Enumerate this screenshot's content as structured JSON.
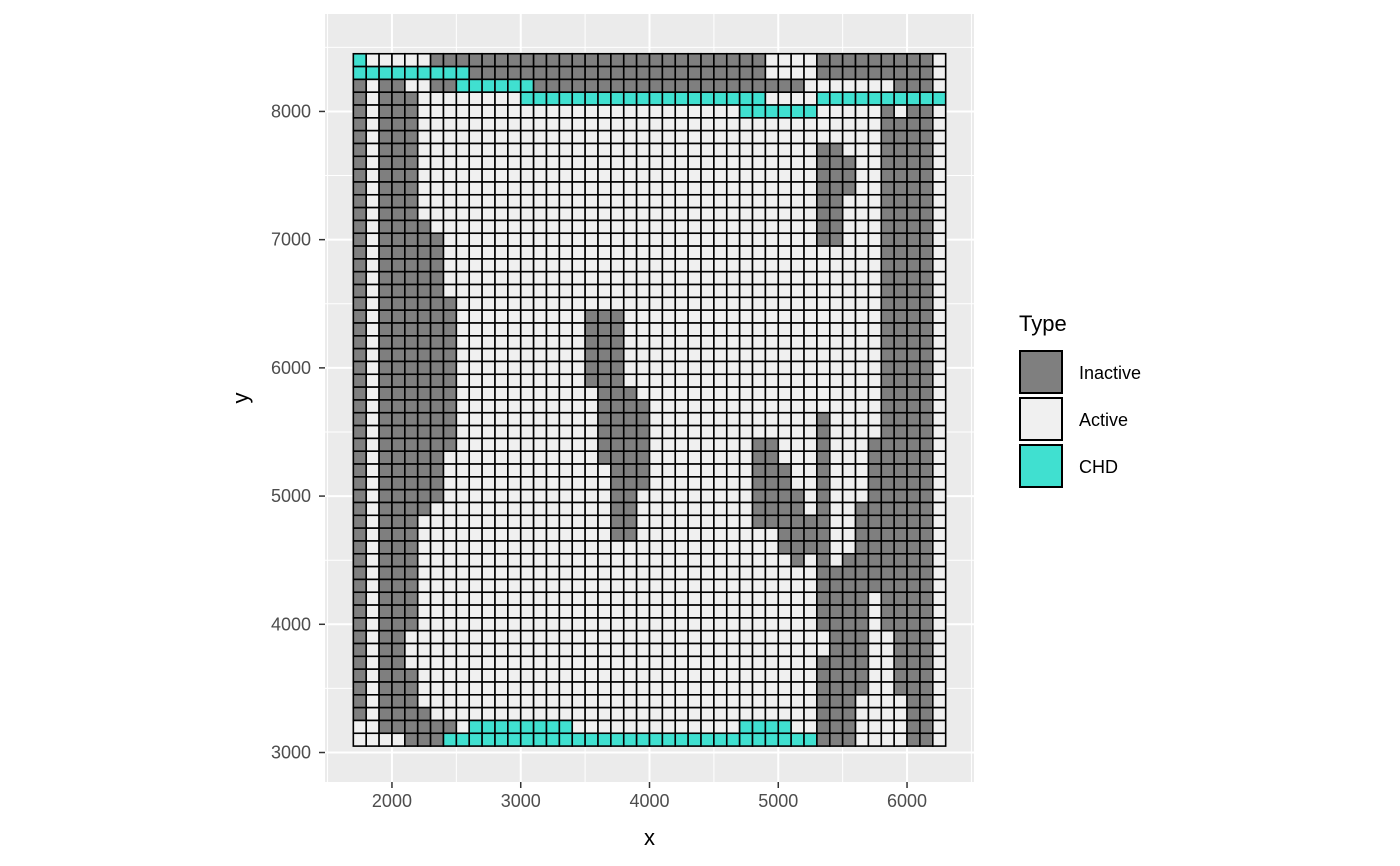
{
  "chart_data": {
    "type": "heatmap",
    "xlabel": "x",
    "ylabel": "y",
    "xlim": [
      1480,
      6520
    ],
    "ylim": [
      2770,
      8760
    ],
    "x_ticks": [
      2000,
      3000,
      4000,
      5000,
      6000
    ],
    "y_ticks": [
      3000,
      4000,
      5000,
      6000,
      7000,
      8000
    ],
    "grid": true,
    "legend_position": "right",
    "legend_title": "Type",
    "categories": [
      {
        "name": "Inactive",
        "color": "#7f7f7f"
      },
      {
        "name": "Active",
        "color": "#f0f0f0"
      },
      {
        "name": "CHD",
        "color": "#40e0d0"
      }
    ],
    "grid_columns": 46,
    "grid_rows": 54,
    "x_start": 1700,
    "y_start": 3050,
    "cell_width": 100,
    "cell_height": 100,
    "inactive_rects": [
      [
        0,
        0,
        1,
        51
      ],
      [
        2,
        3,
        2,
        52
      ],
      [
        4,
        4,
        3,
        44
      ],
      [
        4,
        4,
        48,
        53
      ],
      [
        5,
        5,
        13,
        35
      ],
      [
        6,
        6,
        14,
        34
      ],
      [
        7,
        7,
        19,
        30
      ],
      [
        5,
        5,
        51,
        53
      ],
      [
        6,
        7,
        52,
        53
      ],
      [
        36,
        37,
        7,
        14
      ],
      [
        38,
        38,
        8,
        10
      ],
      [
        36,
        36,
        28,
        44
      ],
      [
        36,
        36,
        47,
        53
      ],
      [
        37,
        37,
        40,
        53
      ],
      [
        38,
        38,
        39,
        53
      ],
      [
        39,
        39,
        35,
        49
      ],
      [
        40,
        40,
        30,
        41
      ],
      [
        41,
        41,
        4,
        44
      ],
      [
        42,
        44,
        5,
        49
      ],
      [
        43,
        44,
        0,
        53
      ],
      [
        36,
        36,
        0,
        1
      ],
      [
        37,
        41,
        0,
        1
      ],
      [
        42,
        42,
        0,
        3
      ],
      [
        6,
        31,
        0,
        2
      ],
      [
        31,
        34,
        2,
        2
      ],
      [
        18,
        20,
        20,
        25
      ],
      [
        19,
        21,
        26,
        31
      ],
      [
        20,
        21,
        32,
        37
      ],
      [
        22,
        22,
        27,
        33
      ],
      [
        31,
        32,
        30,
        36
      ],
      [
        33,
        33,
        32,
        38
      ],
      [
        34,
        34,
        34,
        39
      ],
      [
        35,
        35,
        36,
        38
      ]
    ],
    "chd_cells": [
      [
        0,
        0
      ],
      [
        0,
        1
      ],
      [
        1,
        1
      ],
      [
        2,
        1
      ],
      [
        3,
        1
      ],
      [
        4,
        1
      ],
      [
        5,
        1
      ],
      [
        6,
        1
      ],
      [
        7,
        1
      ],
      [
        8,
        1
      ],
      [
        8,
        2
      ],
      [
        9,
        2
      ],
      [
        10,
        2
      ],
      [
        11,
        2
      ],
      [
        12,
        2
      ],
      [
        13,
        2
      ],
      [
        13,
        3
      ],
      [
        14,
        3
      ],
      [
        15,
        3
      ],
      [
        16,
        3
      ],
      [
        17,
        3
      ],
      [
        18,
        3
      ],
      [
        19,
        3
      ],
      [
        20,
        3
      ],
      [
        21,
        3
      ],
      [
        22,
        3
      ],
      [
        23,
        3
      ],
      [
        24,
        3
      ],
      [
        25,
        3
      ],
      [
        26,
        3
      ],
      [
        27,
        3
      ],
      [
        28,
        3
      ],
      [
        29,
        3
      ],
      [
        30,
        3
      ],
      [
        31,
        3
      ],
      [
        36,
        3
      ],
      [
        37,
        3
      ],
      [
        38,
        3
      ],
      [
        39,
        3
      ],
      [
        40,
        3
      ],
      [
        41,
        3
      ],
      [
        42,
        3
      ],
      [
        43,
        3
      ],
      [
        44,
        3
      ],
      [
        45,
        3
      ],
      [
        30,
        4
      ],
      [
        31,
        4
      ],
      [
        32,
        4
      ],
      [
        33,
        4
      ],
      [
        34,
        4
      ],
      [
        35,
        4
      ],
      [
        7,
        53
      ],
      [
        8,
        53
      ],
      [
        9,
        53
      ],
      [
        10,
        53
      ],
      [
        11,
        53
      ],
      [
        12,
        53
      ],
      [
        13,
        53
      ],
      [
        14,
        53
      ],
      [
        15,
        53
      ],
      [
        16,
        53
      ],
      [
        17,
        53
      ],
      [
        18,
        53
      ],
      [
        19,
        53
      ],
      [
        20,
        53
      ],
      [
        21,
        53
      ],
      [
        22,
        53
      ],
      [
        23,
        53
      ],
      [
        24,
        53
      ],
      [
        25,
        53
      ],
      [
        26,
        53
      ],
      [
        27,
        53
      ],
      [
        28,
        53
      ],
      [
        29,
        53
      ],
      [
        30,
        53
      ],
      [
        31,
        53
      ],
      [
        32,
        53
      ],
      [
        33,
        53
      ],
      [
        34,
        53
      ],
      [
        35,
        53
      ],
      [
        9,
        52
      ],
      [
        10,
        52
      ],
      [
        11,
        52
      ],
      [
        12,
        52
      ],
      [
        13,
        52
      ],
      [
        14,
        52
      ],
      [
        15,
        52
      ],
      [
        16,
        52
      ],
      [
        30,
        52
      ],
      [
        31,
        52
      ],
      [
        32,
        52
      ],
      [
        33,
        52
      ]
    ]
  }
}
